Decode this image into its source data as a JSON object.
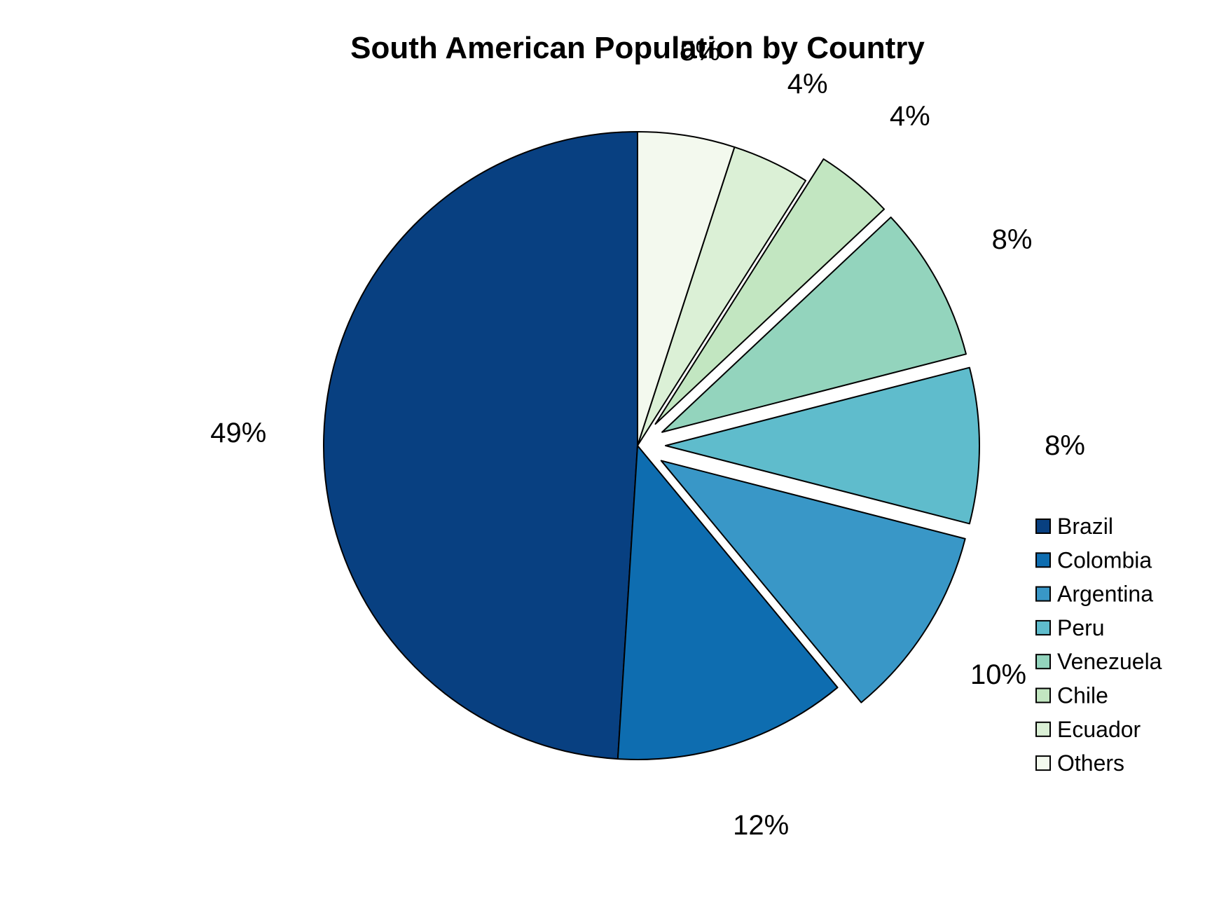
{
  "chart_data": {
    "type": "pie",
    "title": "South American Population by Country",
    "categories": [
      "Brazil",
      "Colombia",
      "Argentina",
      "Peru",
      "Venezuela",
      "Chile",
      "Ecuador",
      "Others"
    ],
    "values": [
      49,
      12,
      10,
      8,
      8,
      4,
      4,
      5
    ],
    "value_labels": [
      "49%",
      "12%",
      "10%",
      "8%",
      "8%",
      "4%",
      "4%",
      "5%"
    ],
    "exploded": [
      false,
      false,
      true,
      true,
      true,
      true,
      false,
      false
    ],
    "colors": [
      "#084081",
      "#0e6db0",
      "#3997c7",
      "#5fbccc",
      "#93d4bd",
      "#c2e6c1",
      "#dbf0d6",
      "#f3f9ee"
    ],
    "legend_position": "right"
  }
}
